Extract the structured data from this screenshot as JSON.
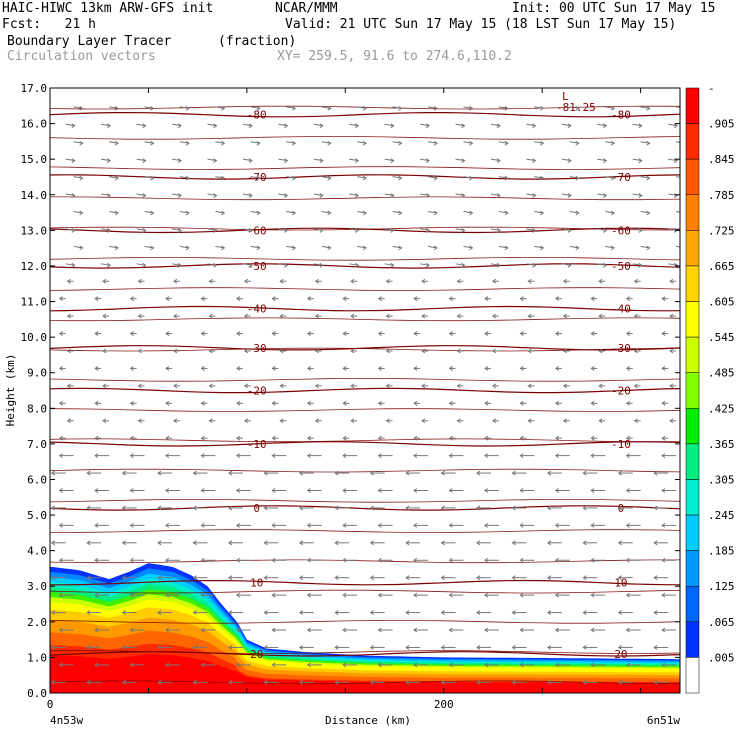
{
  "header": {
    "model": "HAIC-HIWC 13km ARW-GFS init",
    "org": "NCAR/MMM",
    "init": "Init: 00 UTC Sun 17 May 15",
    "fcst": "Fcst:   21 h",
    "valid": "Valid: 21 UTC Sun 17 May 15 (18 LST Sun 17 May 15)",
    "field": "Boundary Layer Tracer",
    "field_unit": "(fraction)",
    "overlay": "Circulation vectors",
    "xy": "XY= 259.5, 91.6 to 274.6,110.2"
  },
  "axes": {
    "ylabel": "Height (km)",
    "xlabel": "Distance (km)",
    "left_endpoint": "4n53w",
    "right_endpoint": "6n51w",
    "min_label": "L",
    "min_value": "-81.25"
  },
  "chart_data": {
    "type": "heatmap",
    "xlim": [
      0,
      320
    ],
    "ylim": [
      0,
      17
    ],
    "yticks": [
      "0.0",
      "1.0",
      "2.0",
      "3.0",
      "4.0",
      "5.0",
      "6.0",
      "7.0",
      "8.0",
      "9.0",
      "10.0",
      "11.0",
      "12.0",
      "13.0",
      "14.0",
      "15.0",
      "16.0",
      "17.0"
    ],
    "xticks": [
      {
        "value": 0,
        "label": "0"
      },
      {
        "value": 200,
        "label": "200"
      }
    ],
    "colorbar_labels": [
      "-",
      ".905",
      ".845",
      ".785",
      ".725",
      ".665",
      ".605",
      ".545",
      ".485",
      ".425",
      ".365",
      ".305",
      ".245",
      ".185",
      ".125",
      ".065",
      ".005"
    ],
    "colorbar_colors": [
      "#ff0000",
      "#ff2a00",
      "#ff5500",
      "#ff7f00",
      "#ffaa00",
      "#ffd400",
      "#ffff00",
      "#ccff00",
      "#80ff00",
      "#00ee00",
      "#00ee80",
      "#00eecc",
      "#00ccff",
      "#0099ff",
      "#0066ff",
      "#0033ff",
      "#ffffff"
    ],
    "temperature_contours": [
      {
        "label": "-80",
        "height_km": 16.25
      },
      {
        "label": "-70",
        "height_km": 14.5
      },
      {
        "label": "-60",
        "height_km": 13.0
      },
      {
        "label": "-50",
        "height_km": 12.0
      },
      {
        "label": "-40",
        "height_km": 10.8
      },
      {
        "label": "-30",
        "height_km": 9.7
      },
      {
        "label": "-20",
        "height_km": 8.5
      },
      {
        "label": "-10",
        "height_km": 7.0
      },
      {
        "label": "0",
        "height_km": 5.2
      },
      {
        "label": "10",
        "height_km": 3.1
      },
      {
        "label": "20",
        "height_km": 1.1
      }
    ],
    "tracer_top_km": [
      {
        "x": 0,
        "top": 3.55
      },
      {
        "x": 15,
        "top": 3.45
      },
      {
        "x": 30,
        "top": 3.2
      },
      {
        "x": 40,
        "top": 3.4
      },
      {
        "x": 50,
        "top": 3.65
      },
      {
        "x": 62,
        "top": 3.55
      },
      {
        "x": 72,
        "top": 3.3
      },
      {
        "x": 80,
        "top": 3.0
      },
      {
        "x": 87,
        "top": 2.5
      },
      {
        "x": 95,
        "top": 2.0
      },
      {
        "x": 100,
        "top": 1.5
      },
      {
        "x": 110,
        "top": 1.25
      },
      {
        "x": 130,
        "top": 1.15
      },
      {
        "x": 160,
        "top": 1.05
      },
      {
        "x": 200,
        "top": 1.0
      },
      {
        "x": 260,
        "top": 0.98
      },
      {
        "x": 320,
        "top": 0.95
      }
    ]
  }
}
